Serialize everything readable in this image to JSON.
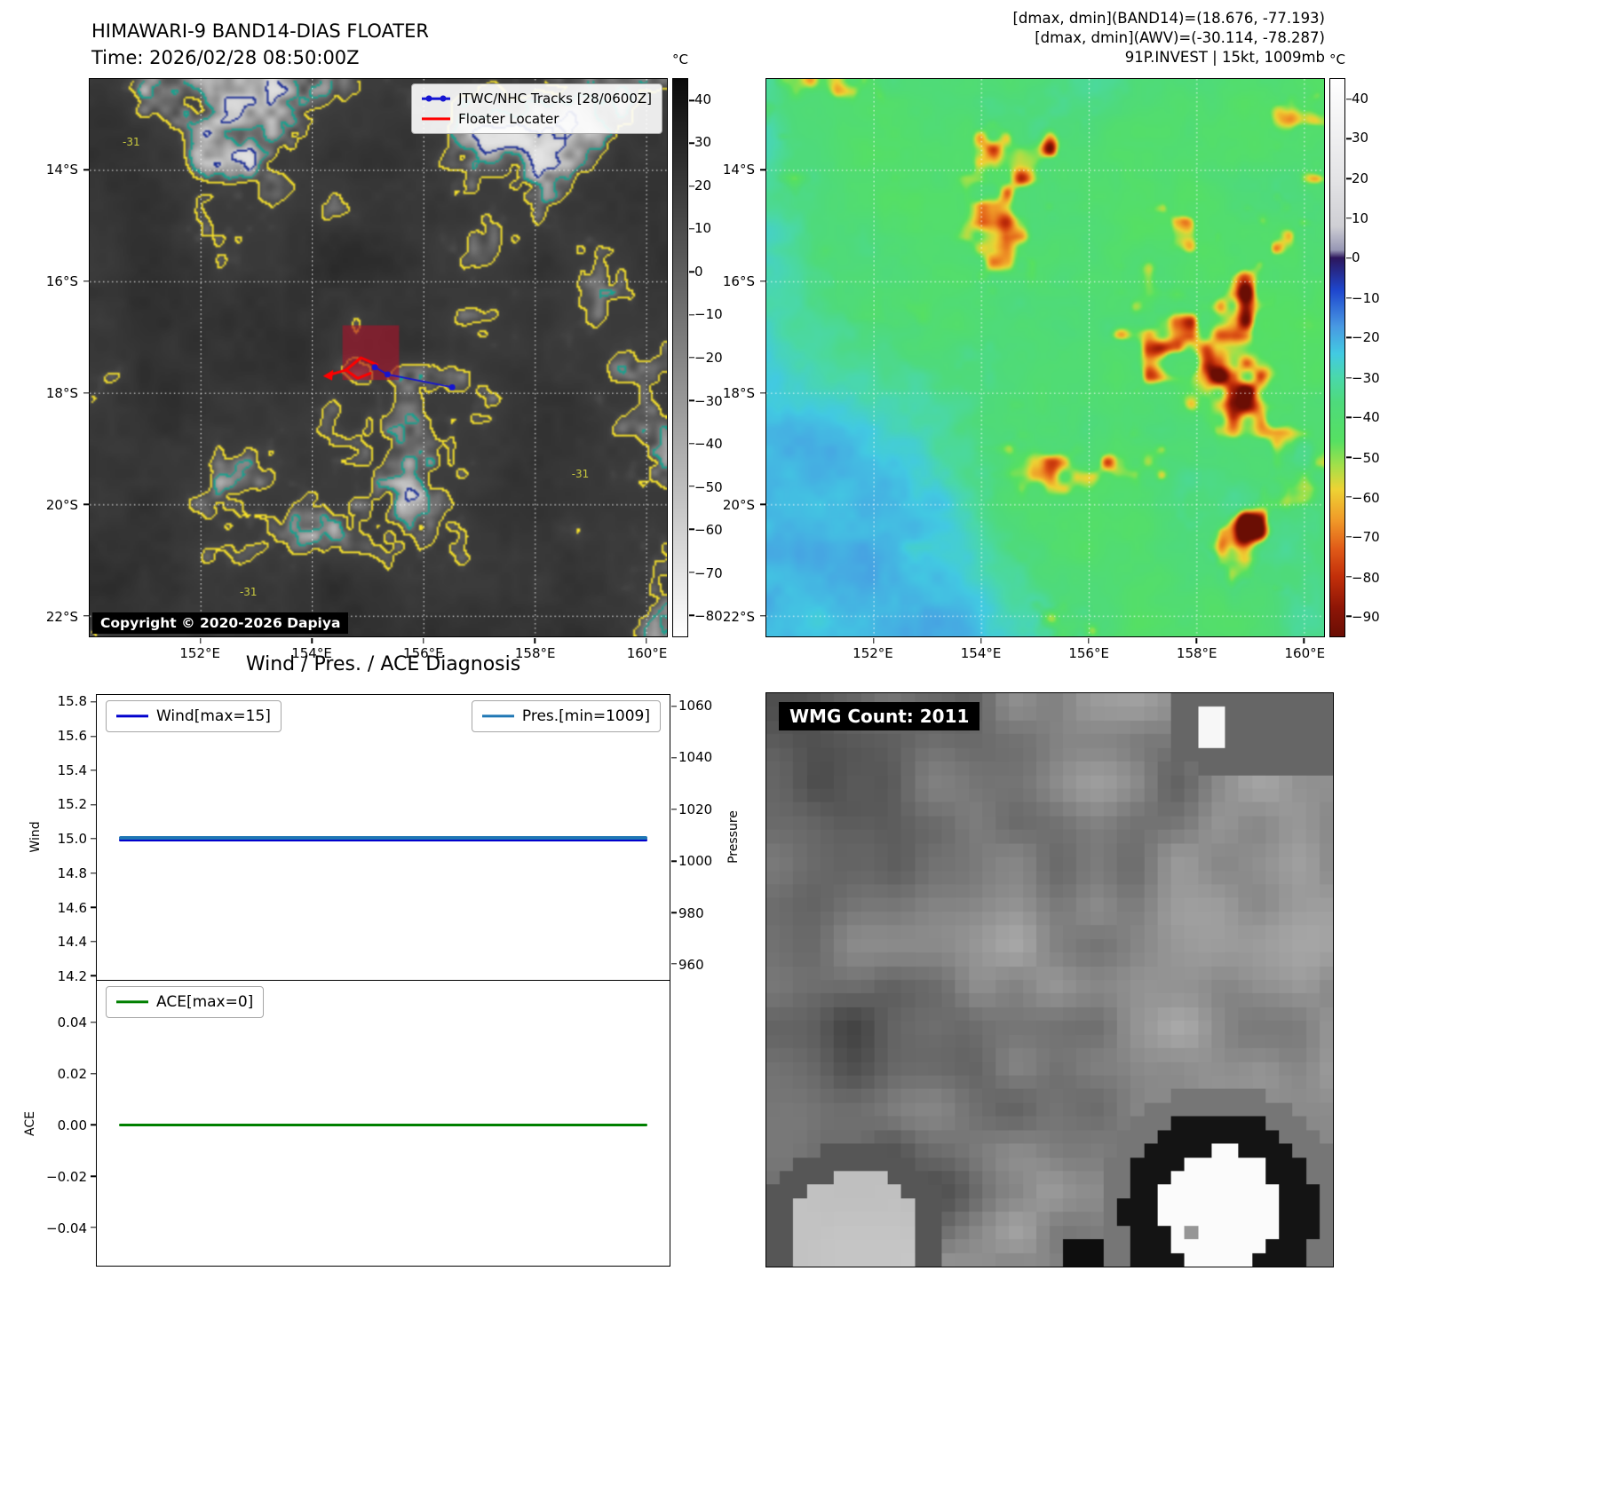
{
  "colors": {
    "track_blue": "#1414d2",
    "floater_red": "#ff0000",
    "floater_box": "#a8142a",
    "wind_line": "#0000cd",
    "pres_line": "#1f77b4",
    "ace_line": "#008000",
    "grid_line": "#ffffff",
    "contour_outer": "#f5e02c",
    "contour_mid": "#17a28f",
    "contour_inner": "#1c2e96"
  },
  "panel_band14": {
    "title": "HIMAWARI-9 BAND14-DIAS FLOATER",
    "time_line": "Time: 2026/02/28 08:50:00Z",
    "legend_track": "JTWC/NHC Tracks [28/0600Z]",
    "legend_floater": "Floater Locater",
    "copyright": "Copyright © 2020-2026 Dapiya",
    "contour_label": "-31",
    "colorbar_unit": "°C",
    "colorbar_ticks": [
      "40",
      "30",
      "20",
      "10",
      "0",
      "−10",
      "−20",
      "−30",
      "−40",
      "−50",
      "−60",
      "−70",
      "−80"
    ],
    "lat_ticks": [
      "14°S",
      "16°S",
      "18°S",
      "20°S",
      "22°S"
    ],
    "lon_ticks": [
      "152°E",
      "154°E",
      "156°E",
      "158°E",
      "160°E"
    ]
  },
  "panel_awv": {
    "annotation_band14": "[dmax, dmin](BAND14)=(18.676, -77.193)",
    "annotation_awv": "[dmax, dmin](AWV)=(-30.114, -78.287)",
    "annotation_storm": "91P.INVEST | 15kt, 1009mb",
    "colorbar_unit": "°C",
    "colorbar_ticks": [
      "40",
      "30",
      "20",
      "10",
      "0",
      "−10",
      "−20",
      "−30",
      "−40",
      "−50",
      "−60",
      "−70",
      "−80",
      "−90"
    ],
    "lat_ticks": [
      "14°S",
      "16°S",
      "18°S",
      "20°S",
      "22°S"
    ],
    "lon_ticks": [
      "152°E",
      "154°E",
      "156°E",
      "158°E",
      "160°E"
    ]
  },
  "diagnosis": {
    "title": "Wind / Pres. / ACE Diagnosis",
    "legend_wind": "Wind[max=15]",
    "legend_pres": "Pres.[min=1009]",
    "legend_ace": "ACE[max=0]",
    "ylabel_wind": "Wind",
    "ylabel_pressure": "Pressure",
    "ylabel_ace": "ACE",
    "wind_ticks": [
      "15.8",
      "15.6",
      "15.4",
      "15.2",
      "15.0",
      "14.8",
      "14.6",
      "14.4",
      "14.2"
    ],
    "pressure_ticks": [
      "1060",
      "1040",
      "1020",
      "1000",
      "980",
      "960"
    ],
    "ace_ticks": [
      "0.04",
      "0.02",
      "0.00",
      "−0.02",
      "−0.04"
    ]
  },
  "panel_wmg": {
    "label": "WMG Count: 2011"
  },
  "chart_data": [
    {
      "type": "heatmap",
      "title": "HIMAWARI-9 BAND14-DIAS FLOATER",
      "subtitle": "Time: 2026/02/28 08:50:00Z",
      "x_ticks": [
        "152°E",
        "154°E",
        "156°E",
        "158°E",
        "160°E"
      ],
      "y_ticks": [
        "14°S",
        "16°S",
        "18°S",
        "20°S",
        "22°S"
      ],
      "colorbar_unit": "°C",
      "colorbar_ticks": [
        40,
        30,
        20,
        10,
        0,
        -10,
        -20,
        -30,
        -40,
        -50,
        -60,
        -70,
        -80
      ],
      "contour_level_label": -31,
      "legend": [
        "JTWC/NHC Tracks [28/0600Z]",
        "Floater Locater"
      ],
      "watermark": "Copyright © 2020-2026 Dapiya"
    },
    {
      "type": "heatmap",
      "annotations": [
        "[dmax, dmin](BAND14)=(18.676, -77.193)",
        "[dmax, dmin](AWV)=(-30.114, -78.287)",
        "91P.INVEST | 15kt, 1009mb"
      ],
      "x_ticks": [
        "152°E",
        "154°E",
        "156°E",
        "158°E",
        "160°E"
      ],
      "y_ticks": [
        "14°S",
        "16°S",
        "18°S",
        "20°S",
        "22°S"
      ],
      "colorbar_unit": "°C",
      "colorbar_ticks": [
        40,
        30,
        20,
        10,
        0,
        -10,
        -20,
        -30,
        -40,
        -50,
        -60,
        -70,
        -80,
        -90
      ]
    },
    {
      "type": "line",
      "title": "Wind / Pres. / ACE Diagnosis",
      "series": [
        {
          "name": "Wind[max=15]",
          "constant_value": 15,
          "axis_label": "Wind",
          "ylim": [
            14.2,
            15.8
          ]
        },
        {
          "name": "Pres.[min=1009]",
          "constant_value": 1009,
          "axis_label": "Pressure",
          "ylim": [
            960,
            1060
          ]
        },
        {
          "name": "ACE[max=0]",
          "constant_value": 0,
          "axis_label": "ACE",
          "ylim": [
            -0.04,
            0.04
          ]
        }
      ]
    },
    {
      "type": "heatmap",
      "label": "WMG Count: 2011",
      "wmg_count": 2011
    }
  ]
}
